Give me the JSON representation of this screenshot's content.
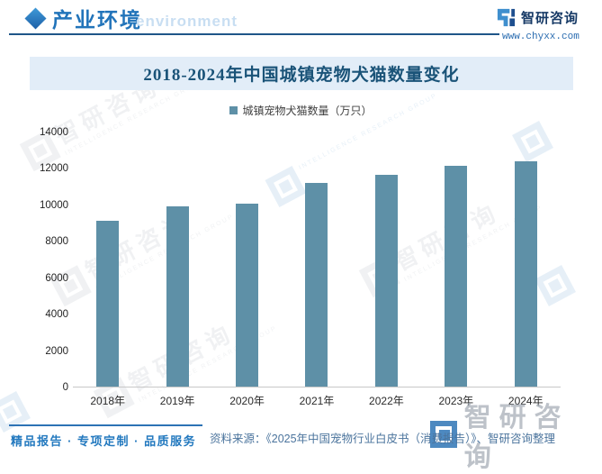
{
  "header": {
    "section_title": "产业环境",
    "section_subtitle": "environment",
    "brand_name": "智研咨询",
    "brand_url": "www.chyxx.com"
  },
  "chart": {
    "title": "2018-2024年中国城镇宠物犬猫数量变化",
    "legend_label": "城镇宠物犬猫数量（万只）"
  },
  "chart_data": {
    "type": "bar",
    "title": "2018-2024年中国城镇宠物犬猫数量变化",
    "legend": [
      "城镇宠物犬猫数量（万只）"
    ],
    "legend_position": "top",
    "categories": [
      "2018年",
      "2019年",
      "2020年",
      "2021年",
      "2022年",
      "2023年",
      "2024年"
    ],
    "values": [
      9149,
      9915,
      10084,
      11235,
      11655,
      12155,
      12411
    ],
    "xlabel": "",
    "ylabel": "",
    "ylim": [
      0,
      14000
    ],
    "yticks": [
      0,
      2000,
      4000,
      6000,
      8000,
      10000,
      12000,
      14000
    ],
    "grid": false,
    "bar_color": "#5e90a7"
  },
  "footer": {
    "brand_line": "精品报告 · 专项定制 · 品质服务",
    "source": "资料来源：《2025年中国宠物行业白皮书（消费报告）》、智研咨询整理"
  },
  "watermark": {
    "text": "智研咨询",
    "subtext": "INTELLIGENCE RESEARCH GROUP"
  },
  "colors": {
    "bar": "#5e90a7",
    "title_text": "#1a5378",
    "title_band_bg": "#e2edf8",
    "header_blue": "#2274ba",
    "footer_blue": "#2379bf",
    "source_text": "#4b749d"
  }
}
